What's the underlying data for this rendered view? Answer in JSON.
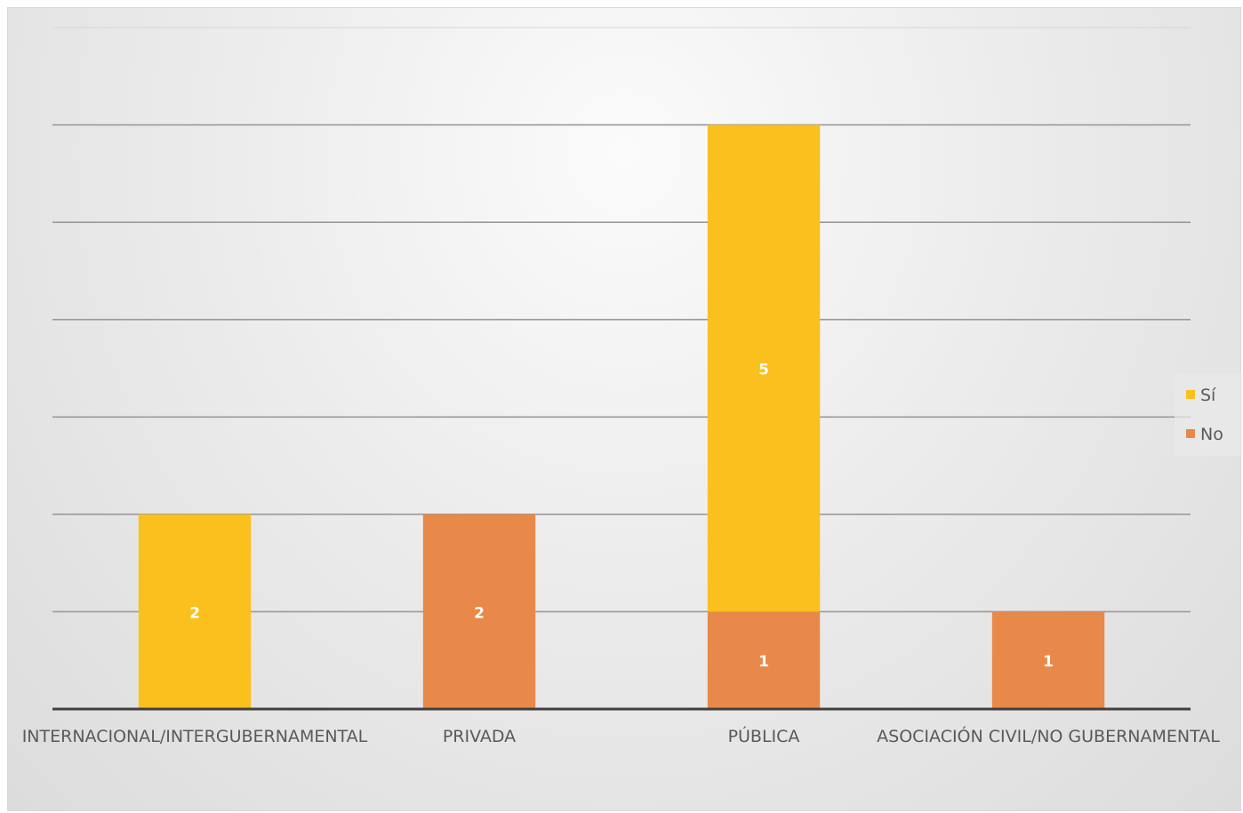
{
  "chart_data": {
    "type": "bar",
    "stacked": true,
    "categories": [
      "INTERNACIONAL/INTERGUBERNAMENTAL",
      "PRIVADA",
      "PÚBLICA",
      "ASOCIACIÓN CIVIL/NO GUBERNAMENTAL"
    ],
    "series": [
      {
        "name": "No",
        "color": "#E8894A",
        "values": [
          0,
          2,
          1,
          1
        ]
      },
      {
        "name": "Sí",
        "color": "#FAC01E",
        "values": [
          2,
          0,
          5,
          0
        ]
      }
    ],
    "data_labels": [
      {
        "category": "INTERNACIONAL/INTERGUBERNAMENTAL",
        "series": "Sí",
        "text": "2"
      },
      {
        "category": "PRIVADA",
        "series": "No",
        "text": "2"
      },
      {
        "category": "PÚBLICA",
        "series": "No",
        "text": "1"
      },
      {
        "category": "PÚBLICA",
        "series": "Sí",
        "text": "5"
      },
      {
        "category": "ASOCIACIÓN CIVIL/NO GUBERNAMENTAL",
        "series": "No",
        "text": "1"
      }
    ],
    "ylim": [
      0,
      7
    ],
    "gridlines": true,
    "legend": {
      "position": "right",
      "entries": [
        "Sí",
        "No"
      ]
    },
    "title": "",
    "xlabel": "",
    "ylabel": ""
  }
}
